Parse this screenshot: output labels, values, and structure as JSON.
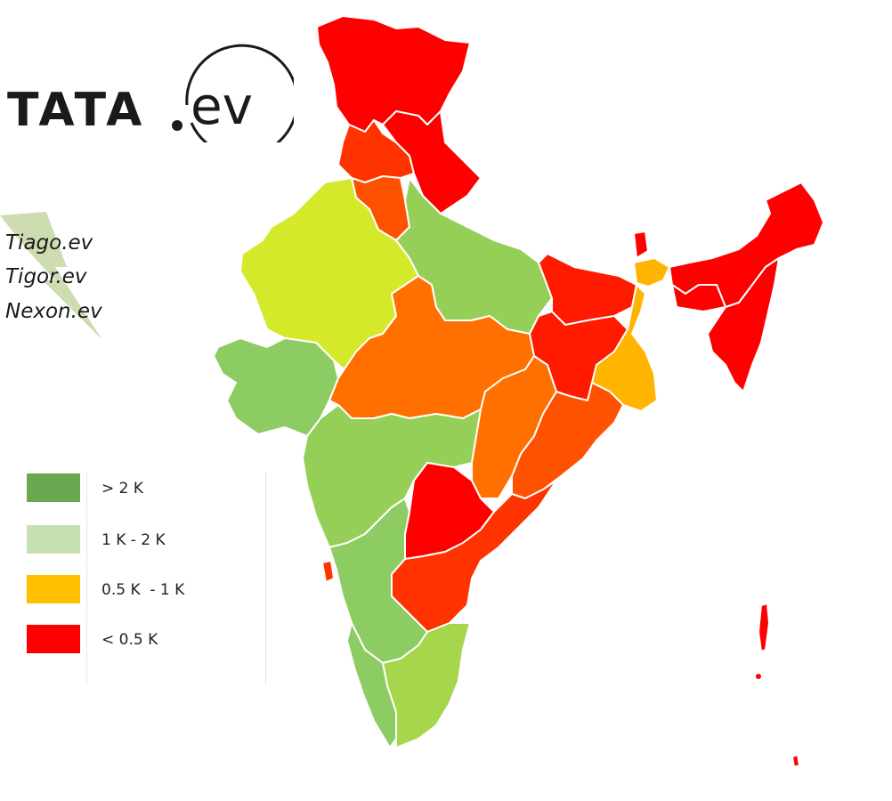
{
  "logo": {
    "brand": "TATA",
    "sub": "ev"
  },
  "models": [
    "Tiago.ev",
    "Tigor.ev",
    "Nexon.ev"
  ],
  "legend": {
    "items": [
      {
        "label": "> 2 K",
        "color": "#6aa84f"
      },
      {
        "label": "1 K - 2 K",
        "color": "#c6e0b4"
      },
      {
        "label": "0.5 K  - 1 K",
        "color": "#ffc000"
      },
      {
        "label": "< 0.5 K",
        "color": "#ff0000"
      }
    ]
  },
  "map_colors": {
    "red": "#ff0000",
    "red_orange": "#ff3300",
    "orange": "#ff7000",
    "dark_orange": "#ff5200",
    "yellow": "#ffb400",
    "lime": "#d4e92a",
    "light_green": "#a6d64c",
    "green": "#95cf58",
    "green2": "#8ccc62"
  }
}
